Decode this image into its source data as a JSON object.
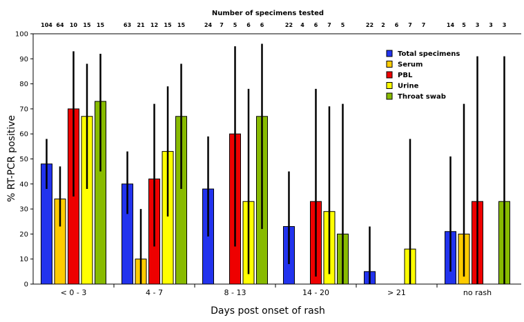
{
  "chart_data": {
    "type": "bar",
    "title": "Number of specimens tested",
    "xlabel": "Days post onset of rash",
    "ylabel": "% RT-PCR positive",
    "ylim": [
      0,
      100
    ],
    "yticks": [
      0,
      10,
      20,
      30,
      40,
      50,
      60,
      70,
      80,
      90,
      100
    ],
    "categories": [
      "< 0 - 3",
      "4 - 7",
      "8 - 13",
      "14 - 20",
      "> 21",
      "no rash"
    ],
    "legend_position": "top-right",
    "grid": false,
    "series": [
      {
        "name": "Total specimens",
        "color": "#2233ee",
        "values": [
          48,
          40,
          38,
          23,
          5,
          21
        ],
        "err_low": [
          38,
          28,
          19,
          8,
          0,
          5
        ],
        "err_high": [
          58,
          53,
          59,
          45,
          23,
          51
        ],
        "counts": [
          "104",
          "63",
          "24",
          "22",
          "22",
          "14"
        ]
      },
      {
        "name": "Serum",
        "color": "#ffcc00",
        "values": [
          34,
          10,
          0,
          0,
          0,
          20
        ],
        "err_low": [
          23,
          0,
          null,
          null,
          null,
          3
        ],
        "err_high": [
          47,
          30,
          null,
          null,
          null,
          72
        ],
        "counts": [
          "64",
          "21",
          "7",
          "4",
          "2",
          "5"
        ]
      },
      {
        "name": "PBL",
        "color": "#ee0000",
        "values": [
          70,
          42,
          60,
          33,
          0,
          33
        ],
        "err_low": [
          35,
          15,
          15,
          3,
          null,
          0
        ],
        "err_high": [
          93,
          72,
          95,
          78,
          null,
          91
        ],
        "counts": [
          "10",
          "12",
          "5",
          "6",
          "6",
          "3"
        ]
      },
      {
        "name": "Urine",
        "color": "#ffff00",
        "values": [
          67,
          53,
          33,
          29,
          14,
          0
        ],
        "err_low": [
          38,
          27,
          4,
          4,
          0,
          null
        ],
        "err_high": [
          88,
          79,
          78,
          71,
          58,
          null
        ],
        "counts": [
          "15",
          "15",
          "6",
          "7",
          "7",
          "3"
        ]
      },
      {
        "name": "Throat swab",
        "color": "#88bb00",
        "values": [
          73,
          67,
          67,
          20,
          0,
          33
        ],
        "err_low": [
          45,
          38,
          22,
          0,
          null,
          0
        ],
        "err_high": [
          92,
          88,
          96,
          72,
          null,
          91
        ],
        "counts": [
          "15",
          "15",
          "6",
          "5",
          "7",
          "3"
        ]
      }
    ]
  }
}
